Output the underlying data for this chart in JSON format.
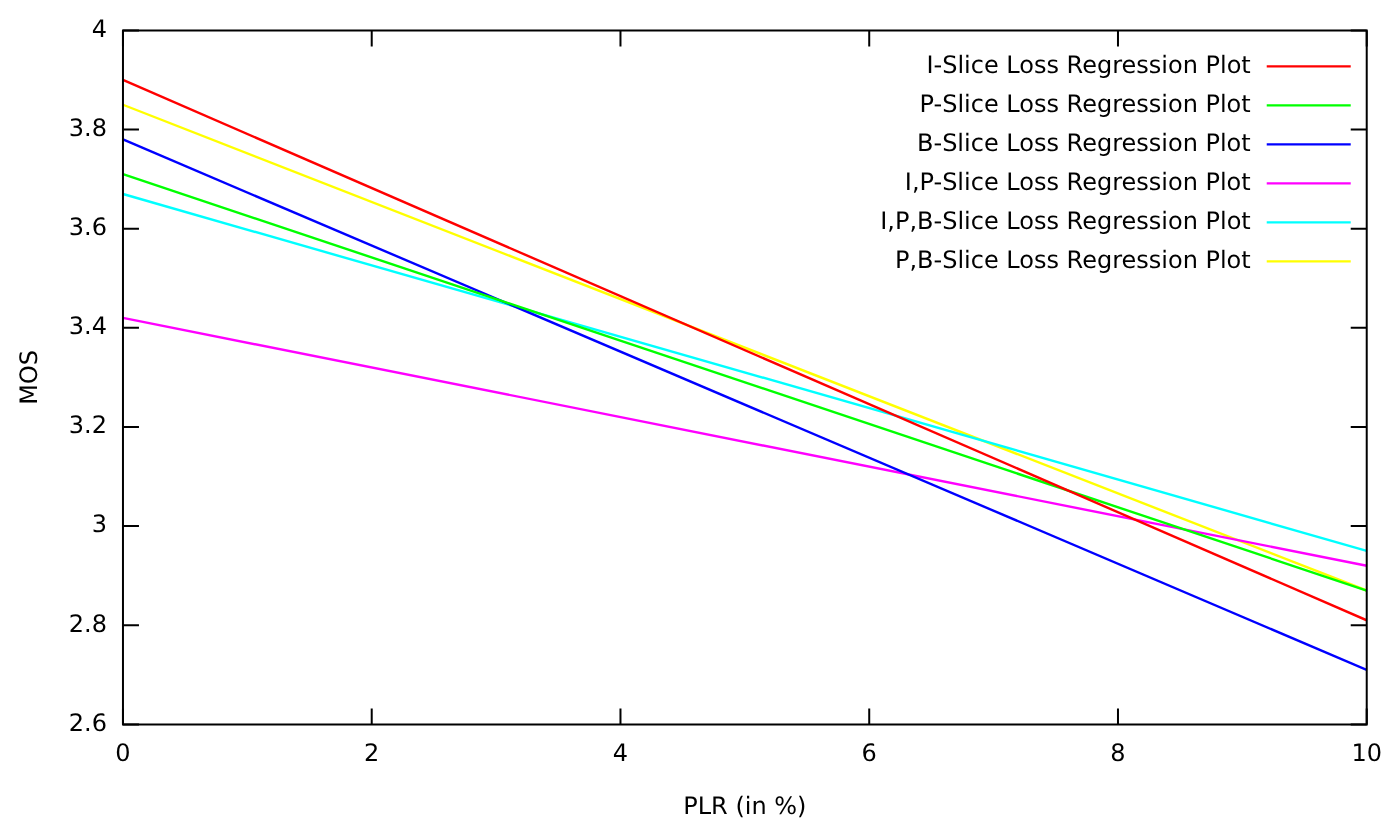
{
  "chart_data": {
    "type": "line",
    "xlabel": "PLR (in %)",
    "ylabel": "MOS",
    "x": [
      0,
      10
    ],
    "series": [
      {
        "name": "I-Slice Loss Regression Plot",
        "color": "#ff0000",
        "values": [
          3.9,
          2.81
        ]
      },
      {
        "name": "P-Slice Loss Regression Plot",
        "color": "#00ff00",
        "values": [
          3.71,
          2.87
        ]
      },
      {
        "name": "B-Slice Loss Regression Plot",
        "color": "#0000ff",
        "values": [
          3.78,
          2.71
        ]
      },
      {
        "name": "I,P-Slice Loss Regression Plot",
        "color": "#ff00ff",
        "values": [
          3.42,
          2.92
        ]
      },
      {
        "name": "I,P,B-Slice Loss Regression Plot",
        "color": "#00ffff",
        "values": [
          3.67,
          2.95
        ]
      },
      {
        "name": "P,B-Slice Loss Regression Plot",
        "color": "#ffff00",
        "values": [
          3.85,
          2.87
        ]
      }
    ],
    "xlim": [
      0,
      10
    ],
    "xticks": [
      0,
      2,
      4,
      6,
      8,
      10
    ],
    "ylim": [
      2.6,
      4
    ],
    "yticks": [
      2.6,
      2.8,
      3,
      3.2,
      3.4,
      3.6,
      3.8,
      4
    ],
    "grid": false,
    "legend": "top right",
    "marker": "none",
    "line_style": "solid"
  }
}
